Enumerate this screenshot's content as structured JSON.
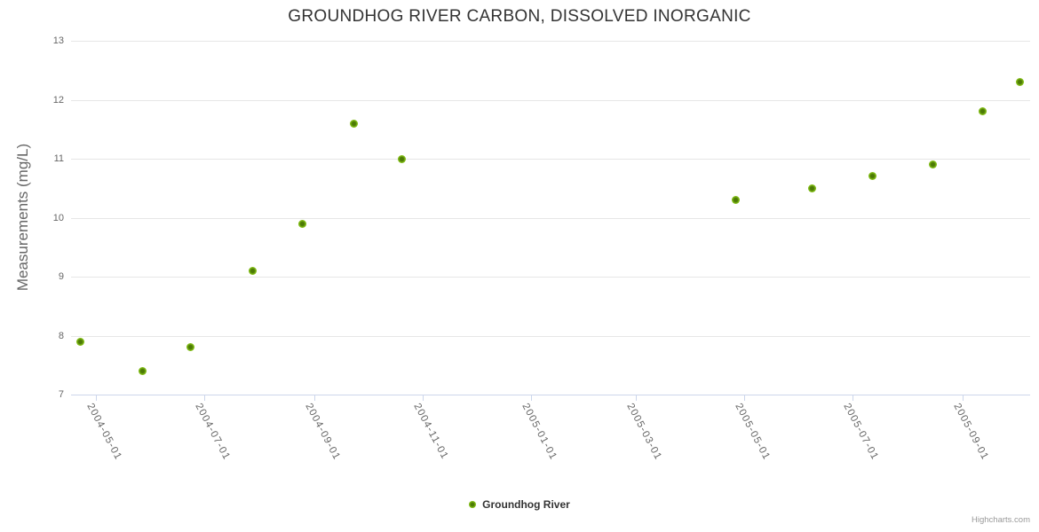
{
  "credits": {
    "label": "Highcharts.com"
  },
  "colors": {
    "marker_outer": "#8ac31e",
    "marker_core": "#4c7a06",
    "gridline": "#e6e6e6",
    "axis_line": "#ccd6eb",
    "tick_label": "#666666",
    "title": "#333333",
    "credits": "#999999",
    "background": "#ffffff"
  },
  "chart_data": {
    "type": "scatter",
    "title": "GROUNDHOG RIVER CARBON, DISSOLVED INORGANIC",
    "xlabel": "",
    "ylabel": "Measurements (mg/L)",
    "ylim": [
      7,
      13
    ],
    "yticks": [
      7,
      8,
      9,
      10,
      11,
      12,
      13
    ],
    "xlim": [
      "2004-04-17",
      "2005-10-09"
    ],
    "xticks": [
      "2004-05-01",
      "2004-07-01",
      "2004-09-01",
      "2004-11-01",
      "2005-01-01",
      "2005-03-01",
      "2005-05-01",
      "2005-07-01",
      "2005-09-01"
    ],
    "grid": true,
    "legend_position": "bottom-center",
    "series": [
      {
        "name": "Groundhog River",
        "points": [
          {
            "x": "2004-04-22",
            "y": 7.9
          },
          {
            "x": "2004-05-27",
            "y": 7.4
          },
          {
            "x": "2004-06-23",
            "y": 7.8
          },
          {
            "x": "2004-07-28",
            "y": 9.1
          },
          {
            "x": "2004-08-25",
            "y": 9.9
          },
          {
            "x": "2004-09-23",
            "y": 11.6
          },
          {
            "x": "2004-10-20",
            "y": 11.0
          },
          {
            "x": "2005-04-26",
            "y": 10.3
          },
          {
            "x": "2005-06-08",
            "y": 10.5
          },
          {
            "x": "2005-07-12",
            "y": 10.7
          },
          {
            "x": "2005-08-15",
            "y": 10.9
          },
          {
            "x": "2005-09-12",
            "y": 11.8
          },
          {
            "x": "2005-10-03",
            "y": 12.3
          }
        ]
      }
    ]
  }
}
